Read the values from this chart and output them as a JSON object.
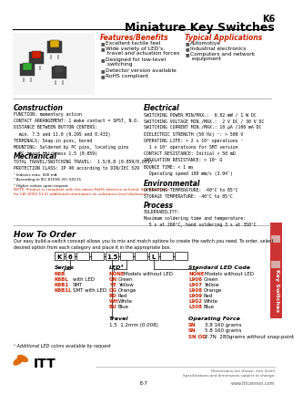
{
  "title_line1": "K6",
  "title_line2": "Miniature Key Switches",
  "features_title": "Features/Benefits",
  "features": [
    "Excellent tactile feel",
    "Wide variety of LED’s,\n travel and actuation forces",
    "Designed for low-level\n switching",
    "Detector version available",
    "RoHS compliant"
  ],
  "applications_title": "Typical Applications",
  "applications": [
    "Automotive",
    "Industrial electronics",
    "Computers and network\n equipment"
  ],
  "construction_title": "Construction",
  "construction_text": "FUNCTION: momentary action\nCONTACT ARRANGEMENT: 1 make contact = SPST, N.O.\nDISTANCE BETWEEN BUTTON CENTERS:\n  min. 7.5 and 11.0 (0.295 and 0.433)\nTERMINALS: Snap-in pins, bored\nMOUNTING: Soldered by PC pins, locating pins\n  PC board thickness 1.5 (0.059)",
  "mechanical_title": "Mechanical",
  "mechanical_text": "TOTAL TRAVEL/SWITCHING TRAVEL:  1.5/0.8 (0.059/0.031)\nPROTECTION CLASS: IP 40 according to DIN/IEC 529",
  "notes_text": "¹ Indexes max. 500 mA\n² According to IEC 61058, IEC 60115\n³ Higher values upon request",
  "note4": "NOTE: Product is compliant with the above RoHS directive as listed. See datasheets\nfor CA (2002-11-6) additional information on substance level disclosure.",
  "electrical_title": "Electrical",
  "electrical_text": "SWITCHING POWER MIN/MAX.:  0.02 mW / 1 W DC\nSWITCHING VOLTAGE MIN./MAX.:  2 V DC / 30 V DC\nSWITCHING CURRENT MIN./MAX.: 10 μA /100 mA DC\nDIELECTRIC STRENGTH (50 Hz) ¹: > 500 V\nOPERATING LIFE: > 2 x 10⁶ operations ¹\n  1 x 10⁶ operations for SMT version\nCONTACT RESISTANCE: Initial < 50 mΩ\nINSULATION RESISTANCE: > 10⁹ Ω\nBOUNCE TIME: < 1 ms\n  Operating speed 100 mm/s (3.94″)",
  "environmental_title": "Environmental",
  "environmental_text": "OPERATING TEMPERATURE: -40°C to 85°C\nSTORAGE TEMPERATURE: -40°C to 85°C",
  "process_title": "Process",
  "process_text": "SOLDERABILITY:\nMaximum soldering time and temperature:\n  5 s at 260°C, hand soldering 3 s at 350°C",
  "how_to_order_title": "How To Order",
  "how_to_order_text": "Our easy build-a-switch concept allows you to mix and match options to create the switch you need. To order, select\ndesired option from each category and place it in the appropriate box.",
  "series_title": "Series",
  "series_items": [
    [
      "K6B",
      ""
    ],
    [
      "K6BL",
      "with LED"
    ],
    [
      "K6B1",
      "SMT"
    ],
    [
      "K6B1L",
      "SMT with LED"
    ]
  ],
  "led_title": "LED³",
  "led_none_label": "NONE",
  "led_none_desc": "Models without LED",
  "led_items": [
    [
      "GN",
      "Green"
    ],
    [
      "YE",
      "Yellow"
    ],
    [
      "OG",
      "Orange"
    ],
    [
      "RD",
      "Red"
    ],
    [
      "WH",
      "White"
    ],
    [
      "BU",
      "Blue"
    ]
  ],
  "travel_title": "Travel",
  "travel_text": "1.5  1.2mm (0.008)",
  "std_led_title": "Standard LED Code",
  "std_led_none_label": "NONE",
  "std_led_none_desc": "Models without LED",
  "std_led_items": [
    [
      "L906",
      "Green"
    ],
    [
      "L907",
      "Yellow"
    ],
    [
      "L908",
      "Orange"
    ],
    [
      "L909",
      "Red"
    ],
    [
      "L902",
      "White"
    ],
    [
      "L308",
      "Blue"
    ]
  ],
  "op_force_title": "Operating Force",
  "op_force_items": [
    [
      "SN",
      "3.8 160 grams"
    ],
    [
      "SN",
      "5.8 160 grams"
    ],
    [
      "SN OD",
      "2.7N  280grams without snap-point"
    ]
  ],
  "footnote": "³ Additional LED colors available by request",
  "footer_left1": "Dimensions are shown: mm (inch)",
  "footer_left2": "Specifications and dimensions subject to change.",
  "footer_center": "E-7",
  "footer_right": "www.ittcannon.com",
  "red_color": "#cc2200",
  "orange_color": "#dd6600",
  "gray_color": "#888888",
  "light_gray": "#cccccc",
  "bg_color": "#ffffff",
  "tab_bg": "#cc3333",
  "tab_text": "Key Switches",
  "separator_color": "#999999"
}
